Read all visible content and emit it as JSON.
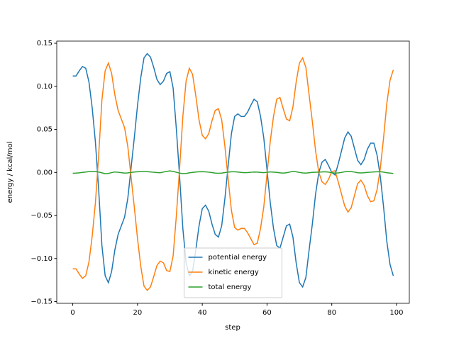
{
  "chart_data": {
    "type": "line",
    "xlabel": "step",
    "ylabel": "energy / kcal/mol",
    "x": [
      0,
      1,
      2,
      3,
      4,
      5,
      6,
      7,
      8,
      9,
      10,
      11,
      12,
      13,
      14,
      15,
      16,
      17,
      18,
      19,
      20,
      21,
      22,
      23,
      24,
      25,
      26,
      27,
      28,
      29,
      30,
      31,
      32,
      33,
      34,
      35,
      36,
      37,
      38,
      39,
      40,
      41,
      42,
      43,
      44,
      45,
      46,
      47,
      48,
      49,
      50,
      51,
      52,
      53,
      54,
      55,
      56,
      57,
      58,
      59,
      60,
      61,
      62,
      63,
      64,
      65,
      66,
      67,
      68,
      69,
      70,
      71,
      72,
      73,
      74,
      75,
      76,
      77,
      78,
      79,
      80,
      81,
      82,
      83,
      84,
      85,
      86,
      87,
      88,
      89,
      90,
      91,
      92,
      93,
      94,
      95,
      96,
      97,
      98,
      99
    ],
    "series": [
      {
        "name": "potential energy",
        "color": "#1f77b4",
        "values": [
          0.112,
          0.112,
          0.118,
          0.123,
          0.121,
          0.105,
          0.075,
          0.035,
          -0.02,
          -0.085,
          -0.12,
          -0.128,
          -0.115,
          -0.09,
          -0.072,
          -0.062,
          -0.052,
          -0.03,
          0.005,
          0.04,
          0.078,
          0.11,
          0.133,
          0.138,
          0.134,
          0.122,
          0.108,
          0.102,
          0.106,
          0.115,
          0.117,
          0.098,
          0.05,
          -0.005,
          -0.065,
          -0.105,
          -0.12,
          -0.115,
          -0.09,
          -0.062,
          -0.042,
          -0.038,
          -0.045,
          -0.06,
          -0.072,
          -0.075,
          -0.062,
          -0.03,
          0.008,
          0.045,
          0.065,
          0.068,
          0.065,
          0.065,
          0.07,
          0.078,
          0.085,
          0.082,
          0.065,
          0.04,
          0.003,
          -0.035,
          -0.065,
          -0.085,
          -0.088,
          -0.075,
          -0.062,
          -0.06,
          -0.075,
          -0.105,
          -0.128,
          -0.133,
          -0.122,
          -0.09,
          -0.06,
          -0.025,
          0.0,
          0.012,
          0.015,
          0.008,
          0.0,
          -0.003,
          0.01,
          0.025,
          0.04,
          0.047,
          0.042,
          0.028,
          0.014,
          0.009,
          0.015,
          0.027,
          0.034,
          0.034,
          0.02,
          -0.005,
          -0.04,
          -0.08,
          -0.107,
          -0.12
        ]
      },
      {
        "name": "kinetic energy",
        "color": "#ff7f0e",
        "values": [
          -0.112,
          -0.112,
          -0.118,
          -0.123,
          -0.12,
          -0.104,
          -0.074,
          -0.035,
          0.02,
          0.084,
          0.118,
          0.127,
          0.115,
          0.09,
          0.072,
          0.062,
          0.052,
          0.03,
          -0.005,
          -0.04,
          -0.077,
          -0.109,
          -0.132,
          -0.137,
          -0.133,
          -0.121,
          -0.108,
          -0.103,
          -0.105,
          -0.114,
          -0.115,
          -0.097,
          -0.05,
          0.005,
          0.065,
          0.106,
          0.121,
          0.114,
          0.089,
          0.061,
          0.043,
          0.039,
          0.045,
          0.06,
          0.072,
          0.074,
          0.061,
          0.03,
          -0.008,
          -0.044,
          -0.064,
          -0.067,
          -0.065,
          -0.065,
          -0.07,
          -0.077,
          -0.084,
          -0.082,
          -0.065,
          -0.04,
          -0.002,
          0.036,
          0.065,
          0.085,
          0.087,
          0.074,
          0.062,
          0.06,
          0.076,
          0.105,
          0.127,
          0.133,
          0.122,
          0.09,
          0.059,
          0.025,
          0.0,
          -0.011,
          -0.014,
          -0.008,
          0.001,
          0.002,
          -0.011,
          -0.025,
          -0.039,
          -0.046,
          -0.041,
          -0.027,
          -0.013,
          -0.009,
          -0.015,
          -0.027,
          -0.034,
          -0.033,
          -0.02,
          0.005,
          0.04,
          0.08,
          0.107,
          0.119
        ]
      },
      {
        "name": "total energy",
        "color": "#2ca02c",
        "values": [
          -0.001,
          -0.0008,
          -0.0005,
          0.0,
          0.0005,
          0.001,
          0.001,
          0.001,
          0.0005,
          -0.0005,
          -0.0015,
          -0.0012,
          -0.0002,
          0.0005,
          0.0002,
          -0.0003,
          -0.0008,
          -0.0006,
          0.0,
          0.0005,
          0.0008,
          0.001,
          0.001,
          0.0009,
          0.0006,
          0.0002,
          -0.0002,
          -0.0004,
          0.0004,
          0.0012,
          0.0018,
          0.0012,
          0.0002,
          -0.0008,
          -0.0014,
          -0.0012,
          -0.0005,
          0.0,
          0.0005,
          0.0008,
          0.0009,
          0.0007,
          0.0003,
          -0.0002,
          -0.0008,
          -0.001,
          -0.0008,
          -0.0002,
          0.0004,
          0.0008,
          0.0008,
          0.0005,
          0.0,
          -0.0003,
          -0.0002,
          0.0002,
          0.0005,
          0.0004,
          0.0,
          -0.0003,
          0.0002,
          0.0006,
          0.0004,
          0.0,
          -0.0005,
          -0.0008,
          -0.0004,
          0.0004,
          0.0012,
          0.0008,
          0.0,
          -0.0006,
          -0.0008,
          -0.0004,
          0.0,
          0.0002,
          0.0004,
          0.0006,
          0.0008,
          0.0004,
          -0.0004,
          -0.0008,
          -0.0006,
          0.0,
          0.0008,
          0.0012,
          0.001,
          0.0004,
          -0.0004,
          -0.0006,
          -0.0004,
          0.0,
          0.0003,
          0.0006,
          0.0008,
          0.0008,
          0.0004,
          -0.0004,
          -0.0008,
          -0.0012
        ]
      }
    ],
    "xlim": [
      -4.95,
      103.95
    ],
    "xticks": [
      0,
      20,
      40,
      60,
      80,
      100
    ],
    "ylim": [
      -0.152,
      0.1525
    ],
    "yticks": [
      {
        "value": -0.15,
        "label": "−0.15"
      },
      {
        "value": -0.1,
        "label": "−0.10"
      },
      {
        "value": -0.05,
        "label": "−0.05"
      },
      {
        "value": 0,
        "label": "0.00"
      },
      0.05,
      {
        "value": 0.1,
        "label": "0.10"
      },
      0.15
    ],
    "legend": "lower center"
  }
}
